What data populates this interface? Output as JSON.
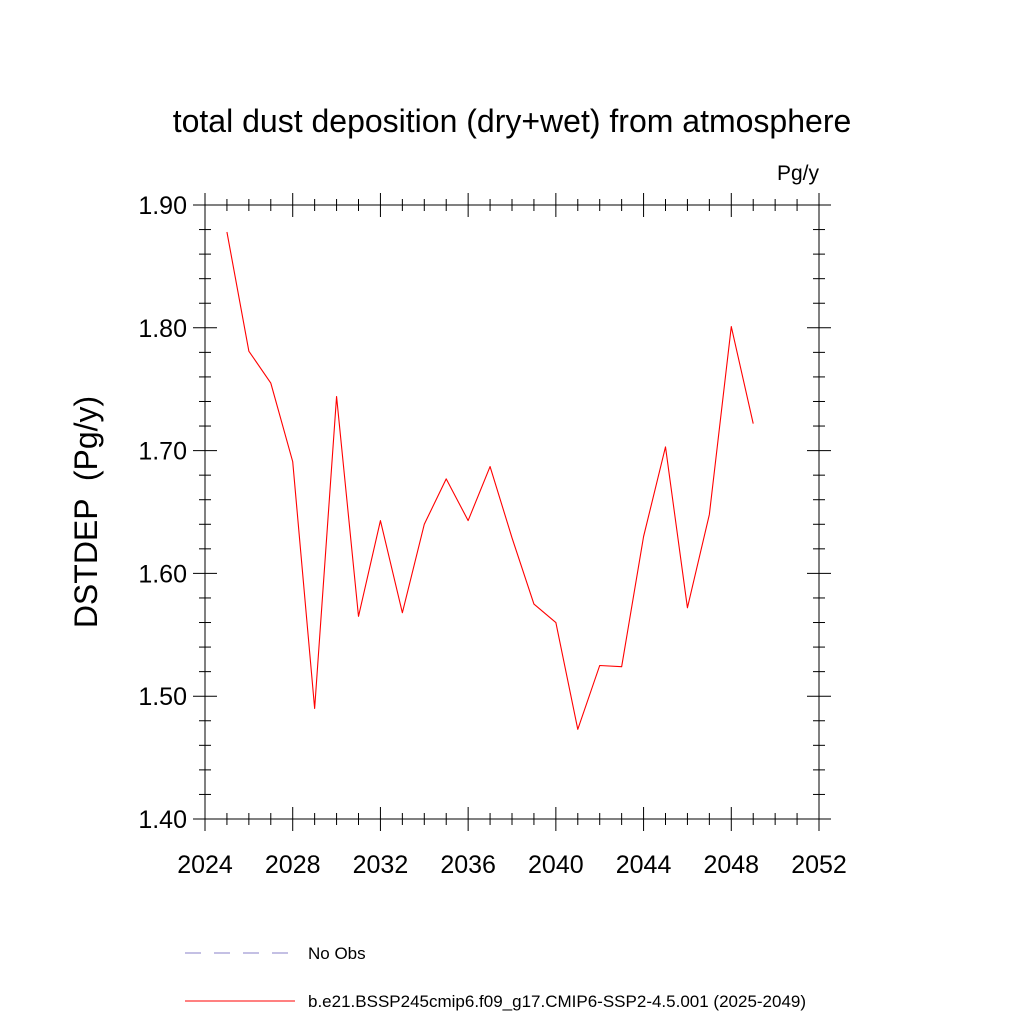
{
  "chart_data": {
    "type": "line",
    "title": "total dust deposition (dry+wet) from atmosphere",
    "units_label": "Pg/y",
    "ylabel": "DSTDEP  (Pg/y)",
    "xlabel": "",
    "xlim": [
      2024,
      2052
    ],
    "ylim": [
      1.4,
      1.9
    ],
    "x_ticks": [
      2024,
      2028,
      2032,
      2036,
      2040,
      2044,
      2048,
      2052
    ],
    "x_tick_labels": [
      "2024",
      "2028",
      "2032",
      "2036",
      "2040",
      "2044",
      "2048",
      "2052"
    ],
    "y_ticks": [
      1.4,
      1.5,
      1.6,
      1.7,
      1.8,
      1.9
    ],
    "y_tick_labels": [
      "1.40",
      "1.50",
      "1.60",
      "1.70",
      "1.80",
      "1.90"
    ],
    "grid": false,
    "series": [
      {
        "name": "b.e21.BSSP245cmip6.f09_g17.CMIP6-SSP2-4.5.001 (2025-2049)",
        "color": "#ff0000",
        "style": "solid",
        "x": [
          2025,
          2026,
          2027,
          2028,
          2029,
          2030,
          2031,
          2032,
          2033,
          2034,
          2035,
          2036,
          2037,
          2038,
          2039,
          2040,
          2041,
          2042,
          2043,
          2044,
          2045,
          2046,
          2047,
          2048,
          2049
        ],
        "values": [
          1.878,
          1.781,
          1.755,
          1.691,
          1.49,
          1.744,
          1.565,
          1.643,
          1.568,
          1.64,
          1.677,
          1.643,
          1.687,
          1.629,
          1.575,
          1.56,
          1.473,
          1.525,
          1.524,
          1.63,
          1.703,
          1.572,
          1.648,
          1.801,
          1.722
        ]
      }
    ],
    "legend": [
      {
        "label": "No Obs",
        "color": "#8a80c8",
        "style": "dashed"
      },
      {
        "label": "b.e21.BSSP245cmip6.f09_g17.CMIP6-SSP2-4.5.001 (2025-2049)",
        "color": "#ff0000",
        "style": "solid"
      }
    ],
    "legend_position": "bottom"
  }
}
